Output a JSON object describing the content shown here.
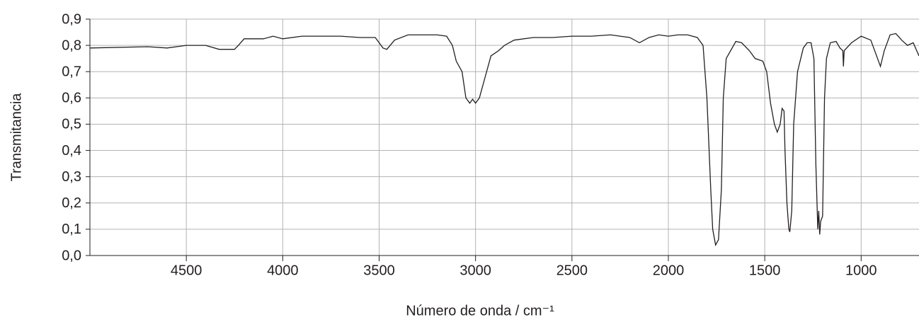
{
  "chart_data": {
    "type": "line",
    "x_label": "Número de onda / cm⁻¹",
    "y_label": "Transmitancia",
    "xlim": [
      5000,
      700
    ],
    "ylim": [
      0,
      0.9
    ],
    "xticks": [
      4500,
      4000,
      3500,
      3000,
      2500,
      2000,
      1500,
      1000
    ],
    "yticks": [
      {
        "value": 0,
        "label": "0,0"
      },
      {
        "value": 0.1,
        "label": "0,1"
      },
      {
        "value": 0.2,
        "label": "0,2"
      },
      {
        "value": 0.3,
        "label": "0,3"
      },
      {
        "value": 0.4,
        "label": "0,4"
      },
      {
        "value": 0.5,
        "label": "0,5"
      },
      {
        "value": 0.6,
        "label": "0,6"
      },
      {
        "value": 0.7,
        "label": "0,7"
      },
      {
        "value": 0.8,
        "label": "0,8"
      },
      {
        "value": 0.9,
        "label": "0,9"
      }
    ],
    "grid": true,
    "series": [
      {
        "color": "#231f20",
        "x": [
          5000,
          4700,
          4600,
          4500,
          4400,
          4330,
          4250,
          4230,
          4200,
          4100,
          4050,
          4000,
          3900,
          3800,
          3700,
          3600,
          3520,
          3480,
          3460,
          3420,
          3350,
          3200,
          3150,
          3120,
          3100,
          3070,
          3050,
          3030,
          3015,
          3000,
          2980,
          2950,
          2920,
          2880,
          2850,
          2800,
          2700,
          2600,
          2500,
          2400,
          2300,
          2200,
          2150,
          2100,
          2050,
          2000,
          1950,
          1900,
          1850,
          1820,
          1800,
          1780,
          1770,
          1755,
          1740,
          1725,
          1715,
          1700,
          1650,
          1620,
          1580,
          1550,
          1510,
          1490,
          1470,
          1450,
          1435,
          1420,
          1410,
          1400,
          1395,
          1385,
          1375,
          1370,
          1360,
          1350,
          1330,
          1300,
          1280,
          1260,
          1245,
          1235,
          1225,
          1220,
          1215,
          1210,
          1200,
          1190,
          1180,
          1160,
          1130,
          1110,
          1095,
          1092,
          1088,
          1050,
          1000,
          950,
          920,
          900,
          880,
          850,
          820,
          790,
          760,
          730,
          700
        ],
        "values": [
          0.79,
          0.795,
          0.79,
          0.8,
          0.8,
          0.785,
          0.785,
          0.8,
          0.825,
          0.825,
          0.835,
          0.825,
          0.835,
          0.835,
          0.835,
          0.83,
          0.83,
          0.79,
          0.785,
          0.82,
          0.84,
          0.84,
          0.835,
          0.8,
          0.74,
          0.7,
          0.6,
          0.58,
          0.595,
          0.58,
          0.6,
          0.68,
          0.76,
          0.78,
          0.8,
          0.82,
          0.83,
          0.83,
          0.835,
          0.835,
          0.84,
          0.83,
          0.81,
          0.83,
          0.84,
          0.835,
          0.84,
          0.84,
          0.83,
          0.8,
          0.6,
          0.25,
          0.1,
          0.04,
          0.06,
          0.25,
          0.6,
          0.75,
          0.815,
          0.81,
          0.78,
          0.75,
          0.74,
          0.7,
          0.58,
          0.5,
          0.47,
          0.5,
          0.56,
          0.55,
          0.4,
          0.2,
          0.1,
          0.09,
          0.17,
          0.5,
          0.7,
          0.79,
          0.81,
          0.81,
          0.75,
          0.35,
          0.1,
          0.17,
          0.08,
          0.13,
          0.15,
          0.6,
          0.75,
          0.81,
          0.815,
          0.79,
          0.78,
          0.72,
          0.78,
          0.81,
          0.835,
          0.82,
          0.76,
          0.72,
          0.78,
          0.84,
          0.845,
          0.82,
          0.8,
          0.81,
          0.76
        ]
      }
    ]
  }
}
